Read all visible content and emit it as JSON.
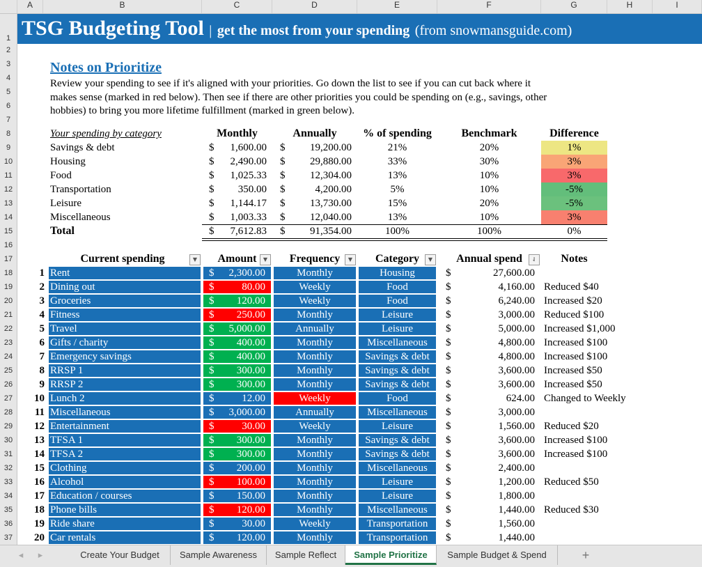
{
  "columns": [
    "A",
    "B",
    "C",
    "D",
    "E",
    "F",
    "G",
    "H",
    "I"
  ],
  "title": {
    "main": "TSG Budgeting Tool",
    "sep": "|",
    "sub": "get the most from your spending",
    "source": "(from snowmansguide.com)"
  },
  "notes": {
    "heading": "Notes on Prioritize",
    "lines": [
      "Review your spending to see if it's aligned with your priorities. Go down the list to see if you can cut back where it",
      "makes sense (marked in red below). Then see if there are other priorities you could be spending on (e.g., savings, other",
      "hobbies) to bring you more lifetime fulfillment (marked in green below)."
    ]
  },
  "summary": {
    "headers": [
      "Your spending by category",
      "Monthly",
      "Annually",
      "% of spending",
      "Benchmark",
      "Difference"
    ],
    "rows": [
      {
        "cat": "Savings & debt",
        "monthly": "1,600.00",
        "annual": "19,200.00",
        "pct": "21%",
        "bench": "20%",
        "diff": "1%",
        "color": "#ede683"
      },
      {
        "cat": "Housing",
        "monthly": "2,490.00",
        "annual": "29,880.00",
        "pct": "33%",
        "bench": "30%",
        "diff": "3%",
        "color": "#f9a576"
      },
      {
        "cat": "Food",
        "monthly": "1,025.33",
        "annual": "12,304.00",
        "pct": "13%",
        "bench": "10%",
        "diff": "3%",
        "color": "#f8696b"
      },
      {
        "cat": "Transportation",
        "monthly": "350.00",
        "annual": "4,200.00",
        "pct": "5%",
        "bench": "10%",
        "diff": "-5%",
        "color": "#63be7b"
      },
      {
        "cat": "Leisure",
        "monthly": "1,144.17",
        "annual": "13,730.00",
        "pct": "15%",
        "bench": "20%",
        "diff": "-5%",
        "color": "#6bc17d"
      },
      {
        "cat": "Miscellaneous",
        "monthly": "1,003.33",
        "annual": "12,040.00",
        "pct": "13%",
        "bench": "10%",
        "diff": "3%",
        "color": "#f8806f"
      }
    ],
    "total": {
      "cat": "Total",
      "monthly": "7,612.83",
      "annual": "91,354.00",
      "pct": "100%",
      "bench": "100%",
      "diff": "0%"
    }
  },
  "list": {
    "headers": [
      "Current spending",
      "Amount",
      "Frequency",
      "Category",
      "Annual spend",
      "Notes"
    ],
    "rows": [
      {
        "n": "1",
        "name": "Rent",
        "amt": "2,300.00",
        "freq": "Monthly",
        "cat": "Housing",
        "annual": "27,600.00",
        "note": "",
        "ac": "blue",
        "fc": "blue"
      },
      {
        "n": "2",
        "name": "Dining out",
        "amt": "80.00",
        "freq": "Weekly",
        "cat": "Food",
        "annual": "4,160.00",
        "note": "Reduced $40",
        "ac": "red",
        "fc": "blue"
      },
      {
        "n": "3",
        "name": "Groceries",
        "amt": "120.00",
        "freq": "Weekly",
        "cat": "Food",
        "annual": "6,240.00",
        "note": "Increased $20",
        "ac": "green",
        "fc": "blue"
      },
      {
        "n": "4",
        "name": "Fitness",
        "amt": "250.00",
        "freq": "Monthly",
        "cat": "Leisure",
        "annual": "3,000.00",
        "note": "Reduced $100",
        "ac": "red",
        "fc": "blue"
      },
      {
        "n": "5",
        "name": "Travel",
        "amt": "5,000.00",
        "freq": "Annually",
        "cat": "Leisure",
        "annual": "5,000.00",
        "note": "Increased $1,000",
        "ac": "green",
        "fc": "blue"
      },
      {
        "n": "6",
        "name": "Gifts / charity",
        "amt": "400.00",
        "freq": "Monthly",
        "cat": "Miscellaneous",
        "annual": "4,800.00",
        "note": "Increased $100",
        "ac": "green",
        "fc": "blue"
      },
      {
        "n": "7",
        "name": "Emergency savings",
        "amt": "400.00",
        "freq": "Monthly",
        "cat": "Savings & debt",
        "annual": "4,800.00",
        "note": "Increased $100",
        "ac": "green",
        "fc": "blue"
      },
      {
        "n": "8",
        "name": "RRSP 1",
        "amt": "300.00",
        "freq": "Monthly",
        "cat": "Savings & debt",
        "annual": "3,600.00",
        "note": "Increased $50",
        "ac": "green",
        "fc": "blue"
      },
      {
        "n": "9",
        "name": "RRSP 2",
        "amt": "300.00",
        "freq": "Monthly",
        "cat": "Savings & debt",
        "annual": "3,600.00",
        "note": "Increased $50",
        "ac": "green",
        "fc": "blue"
      },
      {
        "n": "10",
        "name": "Lunch 2",
        "amt": "12.00",
        "freq": "Weekly",
        "cat": "Food",
        "annual": "624.00",
        "note": "Changed to Weekly",
        "ac": "blue",
        "fc": "red"
      },
      {
        "n": "11",
        "name": "Miscellaneous",
        "amt": "3,000.00",
        "freq": "Annually",
        "cat": "Miscellaneous",
        "annual": "3,000.00",
        "note": "",
        "ac": "blue",
        "fc": "blue"
      },
      {
        "n": "12",
        "name": "Entertainment",
        "amt": "30.00",
        "freq": "Weekly",
        "cat": "Leisure",
        "annual": "1,560.00",
        "note": "Reduced $20",
        "ac": "red",
        "fc": "blue"
      },
      {
        "n": "13",
        "name": "TFSA 1",
        "amt": "300.00",
        "freq": "Monthly",
        "cat": "Savings & debt",
        "annual": "3,600.00",
        "note": "Increased $100",
        "ac": "green",
        "fc": "blue"
      },
      {
        "n": "14",
        "name": "TFSA 2",
        "amt": "300.00",
        "freq": "Monthly",
        "cat": "Savings & debt",
        "annual": "3,600.00",
        "note": "Increased $100",
        "ac": "green",
        "fc": "blue"
      },
      {
        "n": "15",
        "name": "Clothing",
        "amt": "200.00",
        "freq": "Monthly",
        "cat": "Miscellaneous",
        "annual": "2,400.00",
        "note": "",
        "ac": "blue",
        "fc": "blue"
      },
      {
        "n": "16",
        "name": "Alcohol",
        "amt": "100.00",
        "freq": "Monthly",
        "cat": "Leisure",
        "annual": "1,200.00",
        "note": "Reduced $50",
        "ac": "red",
        "fc": "blue"
      },
      {
        "n": "17",
        "name": "Education / courses",
        "amt": "150.00",
        "freq": "Monthly",
        "cat": "Leisure",
        "annual": "1,800.00",
        "note": "",
        "ac": "blue",
        "fc": "blue"
      },
      {
        "n": "18",
        "name": "Phone bills",
        "amt": "120.00",
        "freq": "Monthly",
        "cat": "Miscellaneous",
        "annual": "1,440.00",
        "note": "Reduced $30",
        "ac": "red",
        "fc": "blue"
      },
      {
        "n": "19",
        "name": "Ride share",
        "amt": "30.00",
        "freq": "Weekly",
        "cat": "Transportation",
        "annual": "1,560.00",
        "note": "",
        "ac": "blue",
        "fc": "blue"
      },
      {
        "n": "20",
        "name": "Car rentals",
        "amt": "120.00",
        "freq": "Monthly",
        "cat": "Transportation",
        "annual": "1,440.00",
        "note": "",
        "ac": "blue",
        "fc": "blue"
      }
    ]
  },
  "currency": "$",
  "tabs": [
    "Create Your Budget",
    "Sample Awareness",
    "Sample Reflect",
    "Sample Prioritize",
    "Sample Budget & Spend"
  ],
  "active_tab": "Sample Prioritize",
  "add_sheet": "+"
}
